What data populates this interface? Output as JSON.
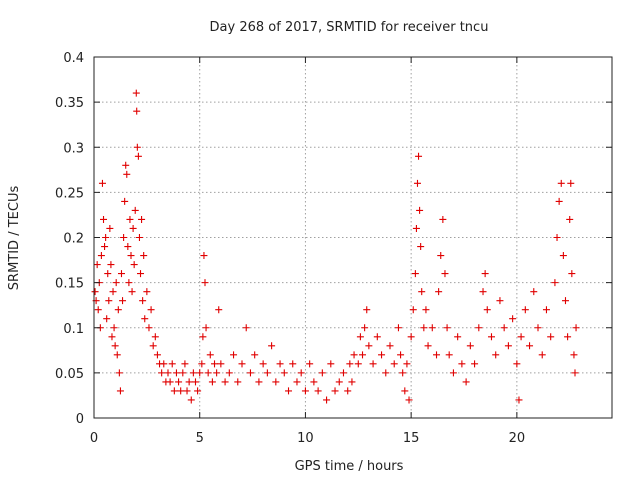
{
  "chart_data": {
    "type": "scatter",
    "title": "Day 268 of 2017, SRMTID for receiver tncu",
    "xlabel": "GPS time / hours",
    "ylabel": "SRMTID / TECUs",
    "xlim": [
      0,
      24.5
    ],
    "ylim": [
      0,
      0.4
    ],
    "xticks": [
      0,
      5,
      10,
      15,
      20
    ],
    "xtick_labels": [
      "0",
      "5",
      "10",
      "15",
      "20"
    ],
    "yticks": [
      0,
      0.05,
      0.1,
      0.15,
      0.2,
      0.25,
      0.3,
      0.35,
      0.4
    ],
    "ytick_labels": [
      "0",
      "0.05",
      "0.1",
      "0.15",
      "0.2",
      "0.25",
      "0.3",
      "0.35",
      "0.4"
    ],
    "grid": true,
    "marker": "+",
    "series": [
      {
        "name": "SRMTID",
        "color": "#e00000",
        "points": [
          [
            0.05,
            0.14
          ],
          [
            0.1,
            0.13
          ],
          [
            0.15,
            0.17
          ],
          [
            0.2,
            0.12
          ],
          [
            0.25,
            0.15
          ],
          [
            0.3,
            0.1
          ],
          [
            0.35,
            0.18
          ],
          [
            0.4,
            0.26
          ],
          [
            0.45,
            0.22
          ],
          [
            0.5,
            0.19
          ],
          [
            0.55,
            0.2
          ],
          [
            0.6,
            0.11
          ],
          [
            0.65,
            0.16
          ],
          [
            0.7,
            0.13
          ],
          [
            0.75,
            0.21
          ],
          [
            0.8,
            0.17
          ],
          [
            0.85,
            0.09
          ],
          [
            0.9,
            0.14
          ],
          [
            0.95,
            0.1
          ],
          [
            1.0,
            0.08
          ],
          [
            1.05,
            0.15
          ],
          [
            1.1,
            0.07
          ],
          [
            1.15,
            0.12
          ],
          [
            1.2,
            0.05
          ],
          [
            1.25,
            0.03
          ],
          [
            1.3,
            0.16
          ],
          [
            1.35,
            0.13
          ],
          [
            1.4,
            0.2
          ],
          [
            1.45,
            0.24
          ],
          [
            1.5,
            0.28
          ],
          [
            1.55,
            0.27
          ],
          [
            1.6,
            0.19
          ],
          [
            1.65,
            0.15
          ],
          [
            1.7,
            0.22
          ],
          [
            1.75,
            0.18
          ],
          [
            1.8,
            0.14
          ],
          [
            1.85,
            0.21
          ],
          [
            1.9,
            0.17
          ],
          [
            1.95,
            0.23
          ],
          [
            2.0,
            0.36
          ],
          [
            2.02,
            0.34
          ],
          [
            2.05,
            0.3
          ],
          [
            2.1,
            0.29
          ],
          [
            2.15,
            0.2
          ],
          [
            2.2,
            0.16
          ],
          [
            2.25,
            0.22
          ],
          [
            2.3,
            0.13
          ],
          [
            2.35,
            0.18
          ],
          [
            2.4,
            0.11
          ],
          [
            2.5,
            0.14
          ],
          [
            2.6,
            0.1
          ],
          [
            2.7,
            0.12
          ],
          [
            2.8,
            0.08
          ],
          [
            2.9,
            0.09
          ],
          [
            3.0,
            0.07
          ],
          [
            3.1,
            0.06
          ],
          [
            3.2,
            0.05
          ],
          [
            3.3,
            0.06
          ],
          [
            3.4,
            0.04
          ],
          [
            3.5,
            0.05
          ],
          [
            3.6,
            0.04
          ],
          [
            3.7,
            0.06
          ],
          [
            3.8,
            0.03
          ],
          [
            3.9,
            0.05
          ],
          [
            4.0,
            0.04
          ],
          [
            4.1,
            0.03
          ],
          [
            4.2,
            0.05
          ],
          [
            4.3,
            0.06
          ],
          [
            4.4,
            0.03
          ],
          [
            4.5,
            0.04
          ],
          [
            4.6,
            0.02
          ],
          [
            4.7,
            0.05
          ],
          [
            4.8,
            0.04
          ],
          [
            4.9,
            0.03
          ],
          [
            5.0,
            0.05
          ],
          [
            5.1,
            0.06
          ],
          [
            5.15,
            0.09
          ],
          [
            5.2,
            0.18
          ],
          [
            5.25,
            0.15
          ],
          [
            5.3,
            0.1
          ],
          [
            5.4,
            0.05
          ],
          [
            5.5,
            0.07
          ],
          [
            5.6,
            0.04
          ],
          [
            5.7,
            0.06
          ],
          [
            5.8,
            0.05
          ],
          [
            5.9,
            0.12
          ],
          [
            6.0,
            0.06
          ],
          [
            6.2,
            0.04
          ],
          [
            6.4,
            0.05
          ],
          [
            6.6,
            0.07
          ],
          [
            6.8,
            0.04
          ],
          [
            7.0,
            0.06
          ],
          [
            7.2,
            0.1
          ],
          [
            7.4,
            0.05
          ],
          [
            7.6,
            0.07
          ],
          [
            7.8,
            0.04
          ],
          [
            8.0,
            0.06
          ],
          [
            8.2,
            0.05
          ],
          [
            8.4,
            0.08
          ],
          [
            8.6,
            0.04
          ],
          [
            8.8,
            0.06
          ],
          [
            9.0,
            0.05
          ],
          [
            9.2,
            0.03
          ],
          [
            9.4,
            0.06
          ],
          [
            9.6,
            0.04
          ],
          [
            9.8,
            0.05
          ],
          [
            10.0,
            0.03
          ],
          [
            10.2,
            0.06
          ],
          [
            10.4,
            0.04
          ],
          [
            10.6,
            0.03
          ],
          [
            10.8,
            0.05
          ],
          [
            11.0,
            0.02
          ],
          [
            11.2,
            0.06
          ],
          [
            11.4,
            0.03
          ],
          [
            11.6,
            0.04
          ],
          [
            11.8,
            0.05
          ],
          [
            12.0,
            0.03
          ],
          [
            12.1,
            0.06
          ],
          [
            12.2,
            0.04
          ],
          [
            12.3,
            0.07
          ],
          [
            12.5,
            0.06
          ],
          [
            12.6,
            0.09
          ],
          [
            12.7,
            0.07
          ],
          [
            12.8,
            0.1
          ],
          [
            12.9,
            0.12
          ],
          [
            13.0,
            0.08
          ],
          [
            13.2,
            0.06
          ],
          [
            13.4,
            0.09
          ],
          [
            13.6,
            0.07
          ],
          [
            13.8,
            0.05
          ],
          [
            14.0,
            0.08
          ],
          [
            14.2,
            0.06
          ],
          [
            14.4,
            0.1
          ],
          [
            14.5,
            0.07
          ],
          [
            14.6,
            0.05
          ],
          [
            14.7,
            0.03
          ],
          [
            14.8,
            0.06
          ],
          [
            14.9,
            0.02
          ],
          [
            15.0,
            0.09
          ],
          [
            15.1,
            0.12
          ],
          [
            15.2,
            0.16
          ],
          [
            15.25,
            0.21
          ],
          [
            15.3,
            0.26
          ],
          [
            15.35,
            0.29
          ],
          [
            15.4,
            0.23
          ],
          [
            15.45,
            0.19
          ],
          [
            15.5,
            0.14
          ],
          [
            15.6,
            0.1
          ],
          [
            15.7,
            0.12
          ],
          [
            15.8,
            0.08
          ],
          [
            16.0,
            0.1
          ],
          [
            16.2,
            0.07
          ],
          [
            16.3,
            0.14
          ],
          [
            16.4,
            0.18
          ],
          [
            16.5,
            0.22
          ],
          [
            16.6,
            0.16
          ],
          [
            16.7,
            0.1
          ],
          [
            16.8,
            0.07
          ],
          [
            17.0,
            0.05
          ],
          [
            17.2,
            0.09
          ],
          [
            17.4,
            0.06
          ],
          [
            17.6,
            0.04
          ],
          [
            17.8,
            0.08
          ],
          [
            18.0,
            0.06
          ],
          [
            18.2,
            0.1
          ],
          [
            18.4,
            0.14
          ],
          [
            18.5,
            0.16
          ],
          [
            18.6,
            0.12
          ],
          [
            18.8,
            0.09
          ],
          [
            19.0,
            0.07
          ],
          [
            19.2,
            0.13
          ],
          [
            19.4,
            0.1
          ],
          [
            19.6,
            0.08
          ],
          [
            19.8,
            0.11
          ],
          [
            20.0,
            0.06
          ],
          [
            20.1,
            0.02
          ],
          [
            20.2,
            0.09
          ],
          [
            20.4,
            0.12
          ],
          [
            20.6,
            0.08
          ],
          [
            20.8,
            0.14
          ],
          [
            21.0,
            0.1
          ],
          [
            21.2,
            0.07
          ],
          [
            21.4,
            0.12
          ],
          [
            21.6,
            0.09
          ],
          [
            21.8,
            0.15
          ],
          [
            21.9,
            0.2
          ],
          [
            22.0,
            0.24
          ],
          [
            22.1,
            0.26
          ],
          [
            22.2,
            0.18
          ],
          [
            22.3,
            0.13
          ],
          [
            22.4,
            0.09
          ],
          [
            22.5,
            0.22
          ],
          [
            22.55,
            0.26
          ],
          [
            22.6,
            0.16
          ],
          [
            22.7,
            0.07
          ],
          [
            22.75,
            0.05
          ],
          [
            22.8,
            0.1
          ]
        ]
      }
    ]
  }
}
